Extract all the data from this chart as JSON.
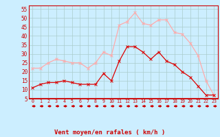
{
  "hours": [
    0,
    1,
    2,
    3,
    4,
    5,
    6,
    7,
    8,
    9,
    10,
    11,
    12,
    13,
    14,
    15,
    16,
    17,
    18,
    19,
    20,
    21,
    22,
    23
  ],
  "vent_moyen": [
    11,
    13,
    14,
    14,
    15,
    14,
    13,
    13,
    13,
    19,
    15,
    26,
    34,
    34,
    31,
    27,
    31,
    26,
    24,
    20,
    17,
    12,
    7,
    7
  ],
  "en_rafales": [
    22,
    22,
    25,
    27,
    26,
    25,
    25,
    22,
    25,
    31,
    29,
    46,
    48,
    53,
    47,
    46,
    49,
    49,
    42,
    41,
    36,
    29,
    15,
    7
  ],
  "color_moyen": "#dd0000",
  "color_rafales": "#ffaaaa",
  "bg_color": "#cceeff",
  "grid_color": "#aacccc",
  "xlabel": "Vent moyen/en rafales ( km/h )",
  "ylim": [
    5,
    57
  ],
  "yticks": [
    5,
    10,
    15,
    20,
    25,
    30,
    35,
    40,
    45,
    50,
    55
  ],
  "arrow_color": "#cc0000",
  "axis_color": "#cc0000",
  "tick_color": "#cc0000",
  "xlabel_color": "#cc0000"
}
